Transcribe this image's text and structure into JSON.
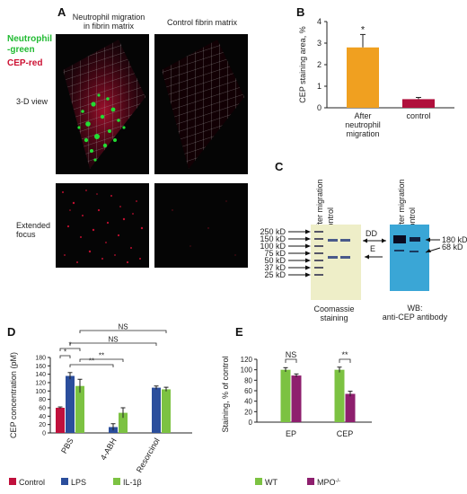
{
  "panel_a": {
    "letter": "A",
    "col_titles": [
      "Neutrophil migration\nin fibrin matrix",
      "Control fibrin matrix"
    ],
    "legend_green": "Neutrophil\n-green",
    "legend_red": "CEP-red",
    "row_labels": [
      "3-D view",
      "Extended\nfocus"
    ],
    "colors": {
      "green": "#22cc33",
      "red": "#cc1133"
    }
  },
  "panel_b": {
    "letter": "B",
    "chart_data": {
      "type": "bar",
      "categories": [
        "After\nneutrophil\nmigration",
        "control"
      ],
      "values": [
        2.8,
        0.4
      ],
      "errors": [
        0.6,
        0.08
      ],
      "colors": [
        "#f0a020",
        "#b0103c"
      ],
      "significance": [
        "*",
        ""
      ],
      "ylabel": "CEP staining area, %",
      "ylim": [
        0,
        4
      ],
      "yticks": [
        0,
        1,
        2,
        3,
        4
      ]
    }
  },
  "panel_c": {
    "letter": "C",
    "lane_labels_left": [
      "After migration",
      "control"
    ],
    "lane_labels_right": [
      "After migration",
      "control"
    ],
    "markers": [
      "250 kD",
      "150 kD",
      "100 kD",
      "75 kD",
      "50 kD",
      "37 kD",
      "25 kD"
    ],
    "band_labels": [
      "DD",
      "E"
    ],
    "right_labels": [
      "180 kD",
      "68 kD"
    ],
    "caption_left": "Coomassie\nstaining",
    "caption_right": "WB:\nanti-CEP antibody"
  },
  "panel_d": {
    "letter": "D",
    "chart_data": {
      "type": "bar",
      "categories": [
        "PBS",
        "4-ABH",
        "Resorcinol"
      ],
      "series": [
        {
          "name": "Control",
          "values": [
            60,
            null,
            null
          ],
          "errors": [
            2,
            null,
            null
          ],
          "color": "#c0103c"
        },
        {
          "name": "LPS",
          "values": [
            136,
            14,
            108
          ],
          "errors": [
            8,
            8,
            4
          ],
          "color": "#2b4e9c"
        },
        {
          "name": "IL-1β",
          "values": [
            112,
            48,
            104
          ],
          "errors": [
            16,
            12,
            5
          ],
          "color": "#7cc242"
        }
      ],
      "ylabel": "CEP concentration (pM)",
      "ylim": [
        0,
        180
      ],
      "yticks": [
        0,
        20,
        40,
        60,
        80,
        100,
        120,
        140,
        160,
        180
      ],
      "significance": [
        "*",
        "*",
        "**",
        "**",
        "NS",
        "NS"
      ],
      "legend_position": "bottom"
    }
  },
  "panel_e": {
    "letter": "E",
    "chart_data": {
      "type": "bar",
      "categories": [
        "EP",
        "CEP"
      ],
      "series": [
        {
          "name": "WT",
          "values": [
            100,
            100
          ],
          "errors": [
            4,
            5
          ],
          "color": "#7cc242"
        },
        {
          "name": "MPO",
          "sup": "-/-",
          "values": [
            89,
            54
          ],
          "errors": [
            3,
            5
          ],
          "color": "#8e1f6e"
        }
      ],
      "ylabel": "Staining, % of control",
      "ylim": [
        0,
        120
      ],
      "yticks": [
        0,
        20,
        40,
        60,
        80,
        100,
        120
      ],
      "significance": [
        "NS",
        "**"
      ],
      "legend_position": "bottom"
    }
  }
}
